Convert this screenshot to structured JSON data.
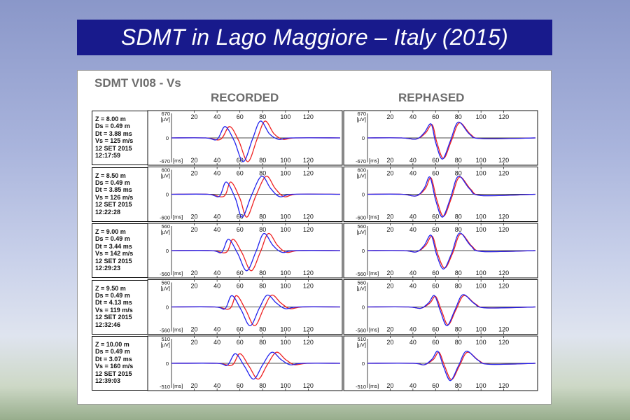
{
  "title": "SDMT in Lago Maggiore – Italy (2015)",
  "panel_title": "SDMT VI08 - Vs",
  "columns": [
    "RECORDED",
    "REPHASED"
  ],
  "colors": {
    "banner": "#181a8c",
    "trace_a": "#2222ee",
    "trace_b": "#ee2222"
  },
  "chart_data": {
    "type": "line",
    "x_unit": "[ms]",
    "y_unit": "[µV]",
    "xlim": [
      0,
      148
    ],
    "x_ticks": [
      20,
      40,
      60,
      80,
      100,
      120
    ],
    "grid": false,
    "rows": [
      {
        "info": [
          "Z = 8.00 m",
          "Ds = 0.49 m",
          "Dt = 3.88 ms",
          "Vs = 125 m/s",
          "12 SET 2015",
          "12:17:59"
        ],
        "amp": 670,
        "ylim": [
          -670,
          670
        ],
        "y_ticks": [
          670,
          0,
          -670
        ],
        "recorded": {
          "blue": {
            "x": [
              0,
              30,
              40,
              47,
              55,
              63,
              71,
              78,
              86,
              94,
              105,
              148
            ],
            "y": [
              0,
              0,
              -40,
              310,
              -80,
              -650,
              -40,
              460,
              110,
              -40,
              0,
              0
            ]
          },
          "red": {
            "x": [
              0,
              30,
              43,
              51,
              59,
              67,
              75,
              82,
              90,
              98,
              109,
              148
            ],
            "y": [
              0,
              0,
              -40,
              310,
              -80,
              -650,
              -40,
              460,
              110,
              -40,
              0,
              0
            ]
          }
        },
        "rephased": {
          "blue": {
            "x": [
              0,
              30,
              43,
              50,
              56,
              60,
              66,
              73,
              80,
              90,
              100,
              148
            ],
            "y": [
              0,
              0,
              -30,
              140,
              380,
              -120,
              -580,
              -80,
              430,
              100,
              -20,
              0
            ]
          },
          "red": {
            "x": [
              0,
              30,
              43,
              51,
              57,
              61,
              67,
              74,
              81,
              91,
              101,
              148
            ],
            "y": [
              0,
              0,
              -30,
              130,
              360,
              -110,
              -560,
              -70,
              410,
              90,
              -20,
              0
            ]
          }
        }
      },
      {
        "info": [
          "Z = 8.50 m",
          "Ds = 0.49 m",
          "Dt = 3.85 ms",
          "Vs = 126 m/s",
          "12 SET 2015",
          "12:22:28"
        ],
        "amp": 600,
        "ylim": [
          -600,
          600
        ],
        "y_ticks": [
          600,
          0,
          -600
        ],
        "recorded": {
          "blue": {
            "x": [
              0,
              32,
              42,
              48,
              56,
              62,
              70,
              79,
              87,
              95,
              106,
              148
            ],
            "y": [
              0,
              0,
              -50,
              300,
              -100,
              -560,
              -40,
              440,
              140,
              -60,
              0,
              0
            ]
          },
          "red": {
            "x": [
              0,
              32,
              46,
              52,
              60,
              66,
              74,
              83,
              91,
              99,
              110,
              148
            ],
            "y": [
              0,
              0,
              -50,
              300,
              -100,
              -560,
              -40,
              440,
              140,
              -60,
              0,
              0
            ]
          }
        },
        "rephased": {
          "blue": {
            "x": [
              0,
              30,
              43,
              50,
              55,
              60,
              66,
              73,
              80,
              90,
              100,
              148
            ],
            "y": [
              0,
              0,
              -40,
              150,
              420,
              -140,
              -560,
              -100,
              440,
              130,
              -30,
              0
            ]
          },
          "red": {
            "x": [
              0,
              30,
              43,
              51,
              56,
              61,
              67,
              74,
              81,
              91,
              101,
              148
            ],
            "y": [
              0,
              0,
              -40,
              140,
              400,
              -130,
              -540,
              -90,
              420,
              120,
              -30,
              0
            ]
          }
        }
      },
      {
        "info": [
          "Z = 9.00 m",
          "Ds = 0.49 m",
          "Dt = 3.44 ms",
          "Vs = 142 m/s",
          "12 SET 2015",
          "12:29:23"
        ],
        "amp": 560,
        "ylim": [
          -560,
          560
        ],
        "y_ticks": [
          560,
          0,
          -560
        ],
        "recorded": {
          "blue": {
            "x": [
              0,
              35,
              44,
              50,
              58,
              66,
              74,
              81,
              89,
              97,
              108,
              148
            ],
            "y": [
              0,
              0,
              -40,
              260,
              -60,
              -460,
              -30,
              390,
              120,
              -40,
              0,
              0
            ]
          },
          "red": {
            "x": [
              0,
              35,
              48,
              54,
              62,
              70,
              78,
              85,
              93,
              101,
              112,
              148
            ],
            "y": [
              0,
              0,
              -40,
              260,
              -60,
              -460,
              -30,
              390,
              120,
              -40,
              0,
              0
            ]
          }
        },
        "rephased": {
          "blue": {
            "x": [
              0,
              32,
              43,
              50,
              56,
              61,
              67,
              74,
              81,
              91,
              101,
              148
            ],
            "y": [
              0,
              0,
              -30,
              120,
              350,
              -100,
              -420,
              -70,
              400,
              110,
              -20,
              0
            ]
          },
          "red": {
            "x": [
              0,
              32,
              43,
              51,
              57,
              62,
              68,
              75,
              82,
              92,
              102,
              148
            ],
            "y": [
              0,
              0,
              -30,
              110,
              330,
              -90,
              -400,
              -60,
              380,
              100,
              -20,
              0
            ]
          }
        }
      },
      {
        "info": [
          "Z = 9.50 m",
          "Ds = 0.49 m",
          "Dt = 4.13 ms",
          "Vs = 119 m/s",
          "12 SET 2015",
          "12:32:46"
        ],
        "amp": 560,
        "ylim": [
          -560,
          560
        ],
        "y_ticks": [
          560,
          0,
          -560
        ],
        "recorded": {
          "blue": {
            "x": [
              0,
              38,
              47,
              53,
              61,
              69,
              77,
              84,
              92,
              100,
              111,
              148
            ],
            "y": [
              0,
              0,
              -40,
              260,
              -60,
              -430,
              -30,
              270,
              90,
              -40,
              0,
              0
            ]
          },
          "red": {
            "x": [
              0,
              38,
              51,
              57,
              65,
              73,
              81,
              88,
              96,
              104,
              115,
              148
            ],
            "y": [
              0,
              0,
              -40,
              260,
              -60,
              -430,
              -30,
              270,
              90,
              -40,
              0,
              0
            ]
          }
        },
        "rephased": {
          "blue": {
            "x": [
              0,
              36,
              47,
              54,
              59,
              64,
              70,
              77,
              84,
              94,
              104,
              148
            ],
            "y": [
              0,
              0,
              -30,
              100,
              260,
              -80,
              -430,
              -70,
              280,
              80,
              -20,
              0
            ]
          },
          "red": {
            "x": [
              0,
              36,
              47,
              55,
              60,
              65,
              71,
              78,
              85,
              95,
              105,
              148
            ],
            "y": [
              0,
              0,
              -30,
              90,
              240,
              -70,
              -410,
              -60,
              260,
              70,
              -20,
              0
            ]
          }
        }
      },
      {
        "info": [
          "Z = 10.00 m",
          "Ds = 0.49 m",
          "Dt = 3.07 ms",
          "Vs = 160 m/s",
          "12 SET 2015",
          "12:39:03"
        ],
        "amp": 510,
        "ylim": [
          -510,
          510
        ],
        "y_ticks": [
          510,
          0,
          -510
        ],
        "recorded": {
          "blue": {
            "x": [
              0,
              40,
              49,
              56,
              64,
              72,
              80,
              88,
              96,
              104,
              115,
              148
            ],
            "y": [
              0,
              0,
              -40,
              200,
              -60,
              -330,
              -30,
              230,
              80,
              -30,
              0,
              0
            ]
          },
          "red": {
            "x": [
              0,
              40,
              53,
              60,
              68,
              76,
              84,
              92,
              100,
              108,
              119,
              148
            ],
            "y": [
              0,
              0,
              -40,
              200,
              -60,
              -330,
              -30,
              230,
              80,
              -30,
              0,
              0
            ]
          }
        },
        "rephased": {
          "blue": {
            "x": [
              0,
              40,
              50,
              57,
              62,
              67,
              73,
              80,
              87,
              97,
              107,
              148
            ],
            "y": [
              0,
              0,
              -30,
              90,
              250,
              -70,
              -360,
              -60,
              250,
              70,
              -20,
              0
            ]
          },
          "red": {
            "x": [
              0,
              40,
              50,
              58,
              63,
              68,
              74,
              81,
              88,
              98,
              108,
              148
            ],
            "y": [
              0,
              0,
              -30,
              80,
              230,
              -60,
              -340,
              -50,
              230,
              60,
              -20,
              0
            ]
          }
        }
      }
    ]
  }
}
